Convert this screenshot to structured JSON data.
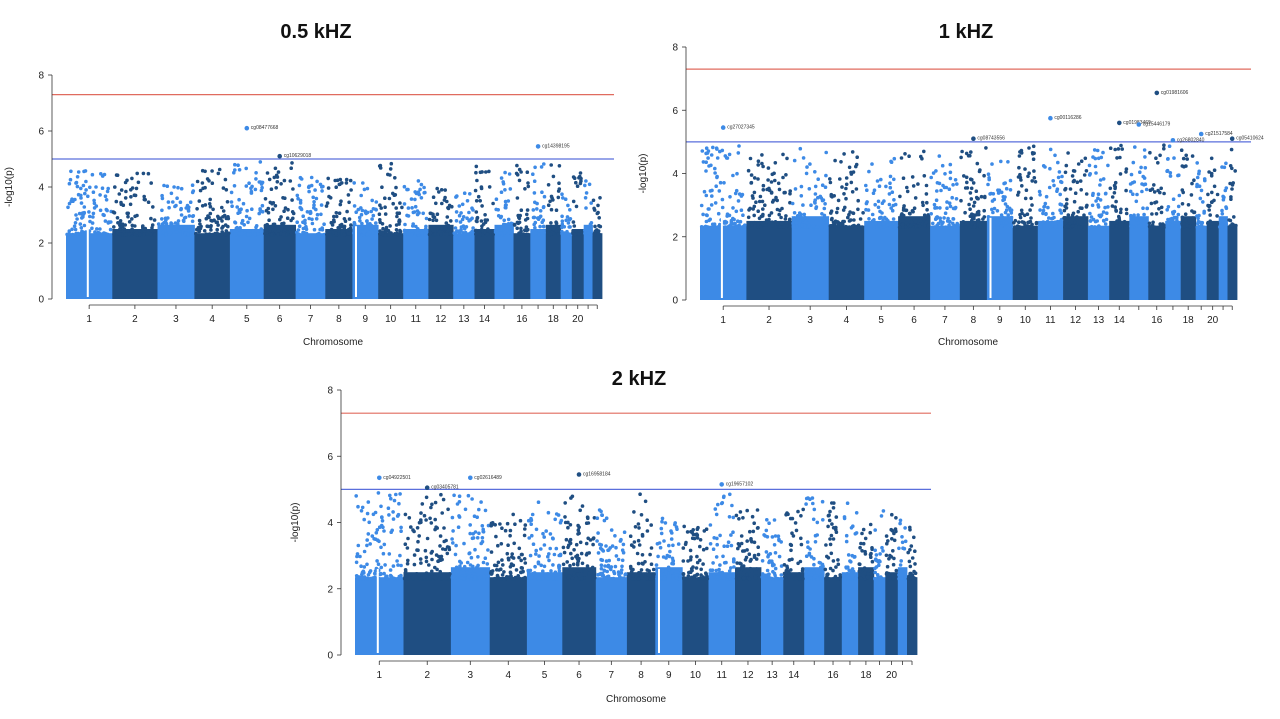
{
  "colors": {
    "light": "#3d8ae6",
    "dark": "#1f4e82",
    "genomewide": "#e06b5f",
    "suggestive": "#5a6fdc"
  },
  "chart_data": [
    {
      "type": "scatter",
      "subtype": "manhattan",
      "title": "0.5 kHZ",
      "xlabel": "Chromosome",
      "ylabel": "-log10(p)",
      "ylim": [
        0,
        8
      ],
      "yticks": [
        0,
        2,
        4,
        6,
        8
      ],
      "xticks": [
        "1",
        "2",
        "3",
        "4",
        "5",
        "6",
        "7",
        "8",
        "9",
        "10",
        "11",
        "12",
        "13",
        "14",
        "16",
        "18",
        "20"
      ],
      "genomewide_line": 7.3,
      "suggestive_line": 5.0,
      "chromosomes": [
        {
          "chr": "1",
          "peak": 4.7
        },
        {
          "chr": "2",
          "peak": 4.6
        },
        {
          "chr": "3",
          "peak": 4.3
        },
        {
          "chr": "4",
          "peak": 4.7
        },
        {
          "chr": "5",
          "peak": 6.1
        },
        {
          "chr": "6",
          "peak": 5.1
        },
        {
          "chr": "7",
          "peak": 4.4
        },
        {
          "chr": "8",
          "peak": 4.5
        },
        {
          "chr": "9",
          "peak": 4.2
        },
        {
          "chr": "10",
          "peak": 4.9
        },
        {
          "chr": "11",
          "peak": 4.3
        },
        {
          "chr": "12",
          "peak": 4.0
        },
        {
          "chr": "13",
          "peak": 3.9
        },
        {
          "chr": "14",
          "peak": 4.8
        },
        {
          "chr": "15",
          "peak": 4.6
        },
        {
          "chr": "16",
          "peak": 4.95
        },
        {
          "chr": "17",
          "peak": 5.45
        },
        {
          "chr": "18",
          "peak": 4.9
        },
        {
          "chr": "19",
          "peak": 4.2
        },
        {
          "chr": "20",
          "peak": 4.7
        },
        {
          "chr": "21",
          "peak": 4.4
        },
        {
          "chr": "22",
          "peak": 3.8
        }
      ],
      "annotations": [
        {
          "label": "cg08477668",
          "chr": "5",
          "y": 6.1
        },
        {
          "label": "cg10629018",
          "chr": "6",
          "y": 5.1
        },
        {
          "label": "cg14398195",
          "chr": "17",
          "y": 5.45
        }
      ]
    },
    {
      "type": "scatter",
      "subtype": "manhattan",
      "title": "1 kHZ",
      "xlabel": "Chromosome",
      "ylabel": "-log10(p)",
      "ylim": [
        0,
        8
      ],
      "yticks": [
        0,
        2,
        4,
        6,
        8
      ],
      "xticks": [
        "1",
        "2",
        "3",
        "4",
        "5",
        "6",
        "7",
        "8",
        "9",
        "10",
        "11",
        "12",
        "13",
        "14",
        "16",
        "18",
        "20"
      ],
      "genomewide_line": 7.3,
      "suggestive_line": 5.0,
      "chromosomes": [
        {
          "chr": "1",
          "peak": 5.45
        },
        {
          "chr": "2",
          "peak": 4.7
        },
        {
          "chr": "3",
          "peak": 4.9
        },
        {
          "chr": "4",
          "peak": 4.8
        },
        {
          "chr": "5",
          "peak": 4.6
        },
        {
          "chr": "6",
          "peak": 4.8
        },
        {
          "chr": "7",
          "peak": 4.6
        },
        {
          "chr": "8",
          "peak": 5.1
        },
        {
          "chr": "9",
          "peak": 4.5
        },
        {
          "chr": "10",
          "peak": 5.15
        },
        {
          "chr": "11",
          "peak": 5.75
        },
        {
          "chr": "12",
          "peak": 4.7
        },
        {
          "chr": "13",
          "peak": 4.9
        },
        {
          "chr": "14",
          "peak": 5.6
        },
        {
          "chr": "15",
          "peak": 5.55
        },
        {
          "chr": "16",
          "peak": 6.55
        },
        {
          "chr": "17",
          "peak": 5.05
        },
        {
          "chr": "18",
          "peak": 5.2
        },
        {
          "chr": "19",
          "peak": 5.25
        },
        {
          "chr": "20",
          "peak": 4.6
        },
        {
          "chr": "21",
          "peak": 4.5
        },
        {
          "chr": "22",
          "peak": 5.1
        }
      ],
      "annotations": [
        {
          "label": "cg27027345",
          "chr": "1",
          "y": 5.45
        },
        {
          "label": "cg08743556",
          "chr": "8",
          "y": 5.1
        },
        {
          "label": "cg00116286",
          "chr": "11",
          "y": 5.75
        },
        {
          "label": "cg01983469",
          "chr": "14",
          "y": 5.6
        },
        {
          "label": "cg15446179",
          "chr": "15",
          "y": 5.55
        },
        {
          "label": "cg01981606",
          "chr": "16",
          "y": 6.55
        },
        {
          "label": "cg26802840",
          "chr": "17",
          "y": 5.05
        },
        {
          "label": "cg21517584",
          "chr": "19",
          "y": 5.25
        },
        {
          "label": "cg05410624",
          "chr": "22",
          "y": 5.1
        }
      ]
    },
    {
      "type": "scatter",
      "subtype": "manhattan",
      "title": "2 kHZ",
      "xlabel": "Chromosome",
      "ylabel": "-log10(p)",
      "ylim": [
        0,
        8
      ],
      "yticks": [
        0,
        2,
        4,
        6,
        8
      ],
      "xticks": [
        "1",
        "2",
        "3",
        "4",
        "5",
        "6",
        "7",
        "8",
        "9",
        "10",
        "11",
        "12",
        "13",
        "14",
        "16",
        "18",
        "20"
      ],
      "genomewide_line": 7.3,
      "suggestive_line": 5.0,
      "chromosomes": [
        {
          "chr": "1",
          "peak": 5.35
        },
        {
          "chr": "2",
          "peak": 5.05
        },
        {
          "chr": "3",
          "peak": 5.35
        },
        {
          "chr": "4",
          "peak": 4.4
        },
        {
          "chr": "5",
          "peak": 4.9
        },
        {
          "chr": "6",
          "peak": 5.45
        },
        {
          "chr": "7",
          "peak": 4.5
        },
        {
          "chr": "8",
          "peak": 4.95
        },
        {
          "chr": "9",
          "peak": 4.2
        },
        {
          "chr": "10",
          "peak": 4.1
        },
        {
          "chr": "11",
          "peak": 5.15
        },
        {
          "chr": "12",
          "peak": 4.6
        },
        {
          "chr": "13",
          "peak": 4.4
        },
        {
          "chr": "14",
          "peak": 4.5
        },
        {
          "chr": "15",
          "peak": 4.95
        },
        {
          "chr": "16",
          "peak": 4.8
        },
        {
          "chr": "17",
          "peak": 4.7
        },
        {
          "chr": "18",
          "peak": 4.3
        },
        {
          "chr": "19",
          "peak": 4.6
        },
        {
          "chr": "20",
          "peak": 4.5
        },
        {
          "chr": "21",
          "peak": 4.3
        },
        {
          "chr": "22",
          "peak": 4.0
        }
      ],
      "annotations": [
        {
          "label": "cg04922501",
          "chr": "1",
          "y": 5.35
        },
        {
          "label": "cg03405781",
          "chr": "2",
          "y": 5.05
        },
        {
          "label": "cg02616489",
          "chr": "3",
          "y": 5.35
        },
        {
          "label": "cg16958184",
          "chr": "6",
          "y": 5.45
        },
        {
          "label": "cg19657102",
          "chr": "11",
          "y": 5.15
        }
      ]
    }
  ]
}
